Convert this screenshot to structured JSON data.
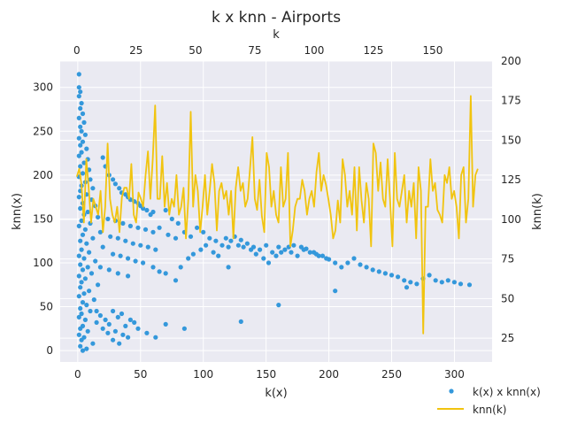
{
  "chart_data": {
    "type": "scatter",
    "title": "k x knn - Airports",
    "xlabel": "k(x)",
    "ylabel": "knn(x)",
    "x2label": "k",
    "y2label": "knn(k)",
    "xlim": [
      -14,
      330
    ],
    "ylim": [
      -13,
      330
    ],
    "x2lim": [
      -7,
      175
    ],
    "y2lim": [
      10,
      200
    ],
    "xticks": [
      0,
      50,
      100,
      150,
      200,
      250,
      300
    ],
    "yticks": [
      0,
      50,
      100,
      150,
      200,
      250,
      300
    ],
    "x2ticks": [
      0,
      25,
      50,
      75,
      100,
      125,
      150
    ],
    "y2ticks": [
      25,
      50,
      75,
      100,
      125,
      150,
      175,
      200
    ],
    "grid": true,
    "legend_position": "bottom-right",
    "colors": {
      "scatter": "#3498db",
      "line": "#f1c40f",
      "background": "#eaeaf2",
      "grid": "#ffffff"
    },
    "series": [
      {
        "name": "k(x) x knn(x)",
        "kind": "scatter",
        "axis": "primary",
        "points": [
          [
            1,
            315
          ],
          [
            1,
            300
          ],
          [
            2,
            295
          ],
          [
            1,
            290
          ],
          [
            3,
            282
          ],
          [
            2,
            276
          ],
          [
            4,
            270
          ],
          [
            1,
            265
          ],
          [
            5,
            260
          ],
          [
            2,
            255
          ],
          [
            3,
            250
          ],
          [
            6,
            246
          ],
          [
            1,
            242
          ],
          [
            4,
            238
          ],
          [
            2,
            234
          ],
          [
            7,
            230
          ],
          [
            3,
            226
          ],
          [
            1,
            222
          ],
          [
            8,
            218
          ],
          [
            5,
            214
          ],
          [
            2,
            210
          ],
          [
            9,
            206
          ],
          [
            4,
            202
          ],
          [
            1,
            198
          ],
          [
            10,
            195
          ],
          [
            6,
            192
          ],
          [
            3,
            188
          ],
          [
            12,
            185
          ],
          [
            2,
            182
          ],
          [
            7,
            178
          ],
          [
            1,
            175
          ],
          [
            11,
            172
          ],
          [
            4,
            168
          ],
          [
            14,
            165
          ],
          [
            2,
            162
          ],
          [
            8,
            158
          ],
          [
            5,
            155
          ],
          [
            16,
            152
          ],
          [
            3,
            148
          ],
          [
            10,
            145
          ],
          [
            1,
            142
          ],
          [
            6,
            138
          ],
          [
            18,
            135
          ],
          [
            4,
            132
          ],
          [
            12,
            128
          ],
          [
            2,
            125
          ],
          [
            7,
            122
          ],
          [
            20,
            118
          ],
          [
            3,
            115
          ],
          [
            9,
            112
          ],
          [
            1,
            108
          ],
          [
            5,
            105
          ],
          [
            14,
            102
          ],
          [
            2,
            98
          ],
          [
            8,
            95
          ],
          [
            4,
            92
          ],
          [
            11,
            88
          ],
          [
            1,
            85
          ],
          [
            6,
            82
          ],
          [
            3,
            78
          ],
          [
            16,
            75
          ],
          [
            2,
            72
          ],
          [
            9,
            68
          ],
          [
            5,
            65
          ],
          [
            1,
            62
          ],
          [
            13,
            58
          ],
          [
            4,
            55
          ],
          [
            7,
            52
          ],
          [
            2,
            48
          ],
          [
            10,
            45
          ],
          [
            3,
            42
          ],
          [
            1,
            38
          ],
          [
            6,
            35
          ],
          [
            15,
            32
          ],
          [
            4,
            28
          ],
          [
            2,
            25
          ],
          [
            8,
            22
          ],
          [
            1,
            18
          ],
          [
            5,
            15
          ],
          [
            3,
            12
          ],
          [
            12,
            8
          ],
          [
            2,
            5
          ],
          [
            7,
            2
          ],
          [
            4,
            0
          ],
          [
            18,
            40
          ],
          [
            22,
            35
          ],
          [
            25,
            30
          ],
          [
            28,
            45
          ],
          [
            32,
            38
          ],
          [
            35,
            42
          ],
          [
            38,
            28
          ],
          [
            42,
            35
          ],
          [
            45,
            32
          ],
          [
            20,
            25
          ],
          [
            24,
            20
          ],
          [
            30,
            22
          ],
          [
            36,
            18
          ],
          [
            40,
            15
          ],
          [
            15,
            45
          ],
          [
            28,
            12
          ],
          [
            33,
            8
          ],
          [
            48,
            25
          ],
          [
            55,
            20
          ],
          [
            62,
            15
          ],
          [
            70,
            30
          ],
          [
            85,
            25
          ],
          [
            20,
            220
          ],
          [
            25,
            200
          ],
          [
            30,
            190
          ],
          [
            35,
            180
          ],
          [
            40,
            175
          ],
          [
            45,
            170
          ],
          [
            50,
            165
          ],
          [
            55,
            160
          ],
          [
            60,
            158
          ],
          [
            22,
            210
          ],
          [
            28,
            195
          ],
          [
            33,
            185
          ],
          [
            38,
            178
          ],
          [
            42,
            172
          ],
          [
            48,
            168
          ],
          [
            52,
            162
          ],
          [
            58,
            155
          ],
          [
            24,
            150
          ],
          [
            30,
            148
          ],
          [
            36,
            145
          ],
          [
            42,
            142
          ],
          [
            48,
            140
          ],
          [
            54,
            138
          ],
          [
            60,
            135
          ],
          [
            26,
            130
          ],
          [
            32,
            128
          ],
          [
            38,
            125
          ],
          [
            44,
            122
          ],
          [
            50,
            120
          ],
          [
            56,
            118
          ],
          [
            62,
            115
          ],
          [
            28,
            110
          ],
          [
            34,
            108
          ],
          [
            40,
            105
          ],
          [
            46,
            102
          ],
          [
            52,
            100
          ],
          [
            18,
            95
          ],
          [
            25,
            92
          ],
          [
            32,
            88
          ],
          [
            40,
            85
          ],
          [
            70,
            160
          ],
          [
            75,
            150
          ],
          [
            80,
            145
          ],
          [
            65,
            140
          ],
          [
            72,
            132
          ],
          [
            78,
            128
          ],
          [
            85,
            135
          ],
          [
            90,
            130
          ],
          [
            95,
            140
          ],
          [
            100,
            135
          ],
          [
            105,
            128
          ],
          [
            110,
            125
          ],
          [
            115,
            120
          ],
          [
            120,
            118
          ],
          [
            125,
            130
          ],
          [
            130,
            126
          ],
          [
            135,
            122
          ],
          [
            140,
            118
          ],
          [
            145,
            115
          ],
          [
            150,
            120
          ],
          [
            155,
            112
          ],
          [
            160,
            118
          ],
          [
            165,
            115
          ],
          [
            170,
            112
          ],
          [
            175,
            108
          ],
          [
            180,
            115
          ],
          [
            185,
            112
          ],
          [
            190,
            110
          ],
          [
            195,
            108
          ],
          [
            200,
            104
          ],
          [
            205,
            100
          ],
          [
            60,
            95
          ],
          [
            65,
            90
          ],
          [
            70,
            88
          ],
          [
            78,
            80
          ],
          [
            82,
            95
          ],
          [
            88,
            105
          ],
          [
            92,
            110
          ],
          [
            98,
            115
          ],
          [
            102,
            120
          ],
          [
            108,
            112
          ],
          [
            112,
            108
          ],
          [
            118,
            128
          ],
          [
            122,
            125
          ],
          [
            128,
            120
          ],
          [
            132,
            118
          ],
          [
            138,
            115
          ],
          [
            142,
            110
          ],
          [
            148,
            105
          ],
          [
            152,
            100
          ],
          [
            158,
            108
          ],
          [
            162,
            112
          ],
          [
            168,
            118
          ],
          [
            172,
            120
          ],
          [
            178,
            118
          ],
          [
            182,
            116
          ],
          [
            188,
            112
          ],
          [
            192,
            108
          ],
          [
            198,
            105
          ],
          [
            210,
            95
          ],
          [
            215,
            100
          ],
          [
            220,
            105
          ],
          [
            225,
            98
          ],
          [
            230,
            95
          ],
          [
            235,
            92
          ],
          [
            240,
            90
          ],
          [
            245,
            88
          ],
          [
            250,
            86
          ],
          [
            255,
            84
          ],
          [
            260,
            80
          ],
          [
            265,
            78
          ],
          [
            270,
            76
          ],
          [
            275,
            82
          ],
          [
            280,
            86
          ],
          [
            285,
            80
          ],
          [
            290,
            78
          ],
          [
            295,
            80
          ],
          [
            300,
            78
          ],
          [
            305,
            76
          ],
          [
            312,
            75
          ],
          [
            205,
            68
          ],
          [
            262,
            72
          ],
          [
            130,
            33
          ],
          [
            160,
            52
          ],
          [
            120,
            95
          ]
        ]
      },
      {
        "name": "knn(k)",
        "kind": "line",
        "axis": "secondary",
        "y": [
          127,
          132,
          122,
          98,
          138,
          120,
          98,
          113,
          108,
          103,
          118,
          92,
          108,
          148,
          113,
          103,
          98,
          108,
          92,
          114,
          120,
          120,
          113,
          135,
          103,
          98,
          117,
          113,
          108,
          128,
          143,
          113,
          138,
          172,
          113,
          113,
          140,
          108,
          123,
          103,
          113,
          108,
          128,
          103,
          108,
          120,
          88,
          113,
          168,
          108,
          128,
          118,
          92,
          108,
          128,
          103,
          118,
          135,
          123,
          93,
          118,
          123,
          113,
          118,
          103,
          118,
          88,
          120,
          133,
          118,
          123,
          108,
          113,
          132,
          152,
          113,
          106,
          125,
          102,
          92,
          142,
          133,
          108,
          118,
          103,
          98,
          133,
          108,
          113,
          142,
          83,
          93,
          108,
          113,
          113,
          125,
          118,
          103,
          113,
          118,
          108,
          130,
          142,
          118,
          128,
          122,
          113,
          103,
          88,
          93,
          112,
          98,
          138,
          128,
          108,
          118,
          103,
          133,
          93,
          133,
          112,
          98,
          123,
          113,
          83,
          148,
          142,
          118,
          136,
          113,
          108,
          138,
          113,
          83,
          142,
          113,
          108,
          118,
          128,
          98,
          118,
          108,
          123,
          88,
          133,
          118,
          28,
          108,
          108,
          138,
          118,
          123,
          106,
          103,
          98,
          128,
          123,
          133,
          113,
          118,
          108,
          88,
          128,
          133,
          98,
          113,
          178,
          108,
          128,
          132
        ]
      }
    ]
  }
}
